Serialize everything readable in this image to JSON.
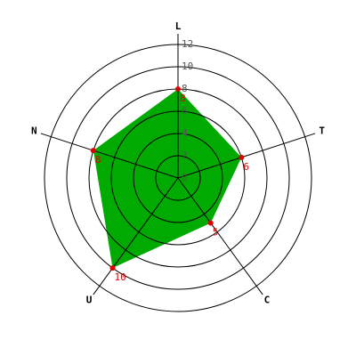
{
  "chart_data": {
    "type": "radar",
    "categories": [
      "L",
      "T",
      "C",
      "U",
      "N"
    ],
    "values": [
      8,
      6,
      5,
      10,
      8
    ],
    "color": "#00aa00",
    "marker_color": "#dd0000",
    "rlim": [
      0,
      12
    ],
    "rticks": [
      0,
      2,
      4,
      6,
      8,
      10,
      12
    ],
    "grid": true
  }
}
